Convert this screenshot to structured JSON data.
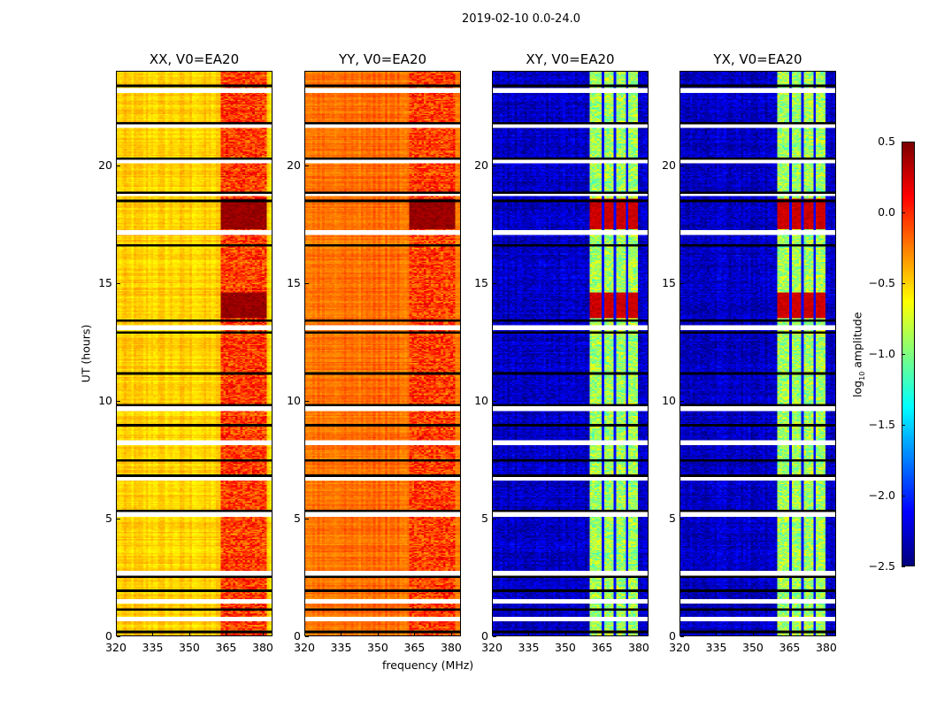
{
  "chart_data": {
    "type": "heatmap",
    "title": "2019-02-10 0.0-24.0",
    "xlabel": "frequency (MHz)",
    "ylabel": "UT (hours)",
    "xlim": [
      320,
      384
    ],
    "ylim": [
      0,
      24
    ],
    "xticks": [
      320,
      335,
      350,
      365,
      380
    ],
    "yticks": [
      0,
      5,
      10,
      15,
      20
    ],
    "colorbar": {
      "label_main": "log",
      "label_sub": "10",
      "label_rest": " amplitude",
      "range": [
        -2.5,
        0.5
      ],
      "ticks": [
        "0.5",
        "0.0",
        "−0.5",
        "−1.0",
        "−1.5",
        "−2.0",
        "−2.5"
      ],
      "colormap": "jet"
    },
    "flagged_gaps_hours": [
      23.2,
      21.7,
      20.2,
      18.8,
      17.15,
      13.1,
      9.65,
      8.2,
      6.7,
      5.15,
      2.65,
      1.45,
      0.7
    ],
    "black_line_hours": [
      23.4,
      21.8,
      20.3,
      18.85,
      18.5,
      16.6,
      13.4,
      12.9,
      11.15,
      9.8,
      8.95,
      7.45,
      6.8,
      5.3,
      2.5,
      1.9,
      1.1,
      0.15
    ],
    "bright_periods_hours": [
      [
        17.3,
        18.6
      ],
      [
        13.5,
        14.6
      ]
    ],
    "panels": [
      {
        "title": "XX, V0=EA20",
        "base_level": -0.5,
        "band_level": -0.05,
        "band_start_mhz": 363,
        "band_end_mhz": 382,
        "bright_level": 0.35
      },
      {
        "title": "YY, V0=EA20",
        "base_level": -0.2,
        "band_level": -0.05,
        "band_start_mhz": 363,
        "band_end_mhz": 382,
        "bright_level": 0.35
      },
      {
        "title": "XY, V0=EA20",
        "base_level": -2.3,
        "band_level": -0.9,
        "band_start_mhz": 360.5,
        "band_end_mhz": 380,
        "bright_level": 0.2
      },
      {
        "title": "YX, V0=EA20",
        "base_level": -2.3,
        "band_level": -0.9,
        "band_start_mhz": 360.5,
        "band_end_mhz": 380,
        "bright_level": 0.2
      }
    ]
  }
}
